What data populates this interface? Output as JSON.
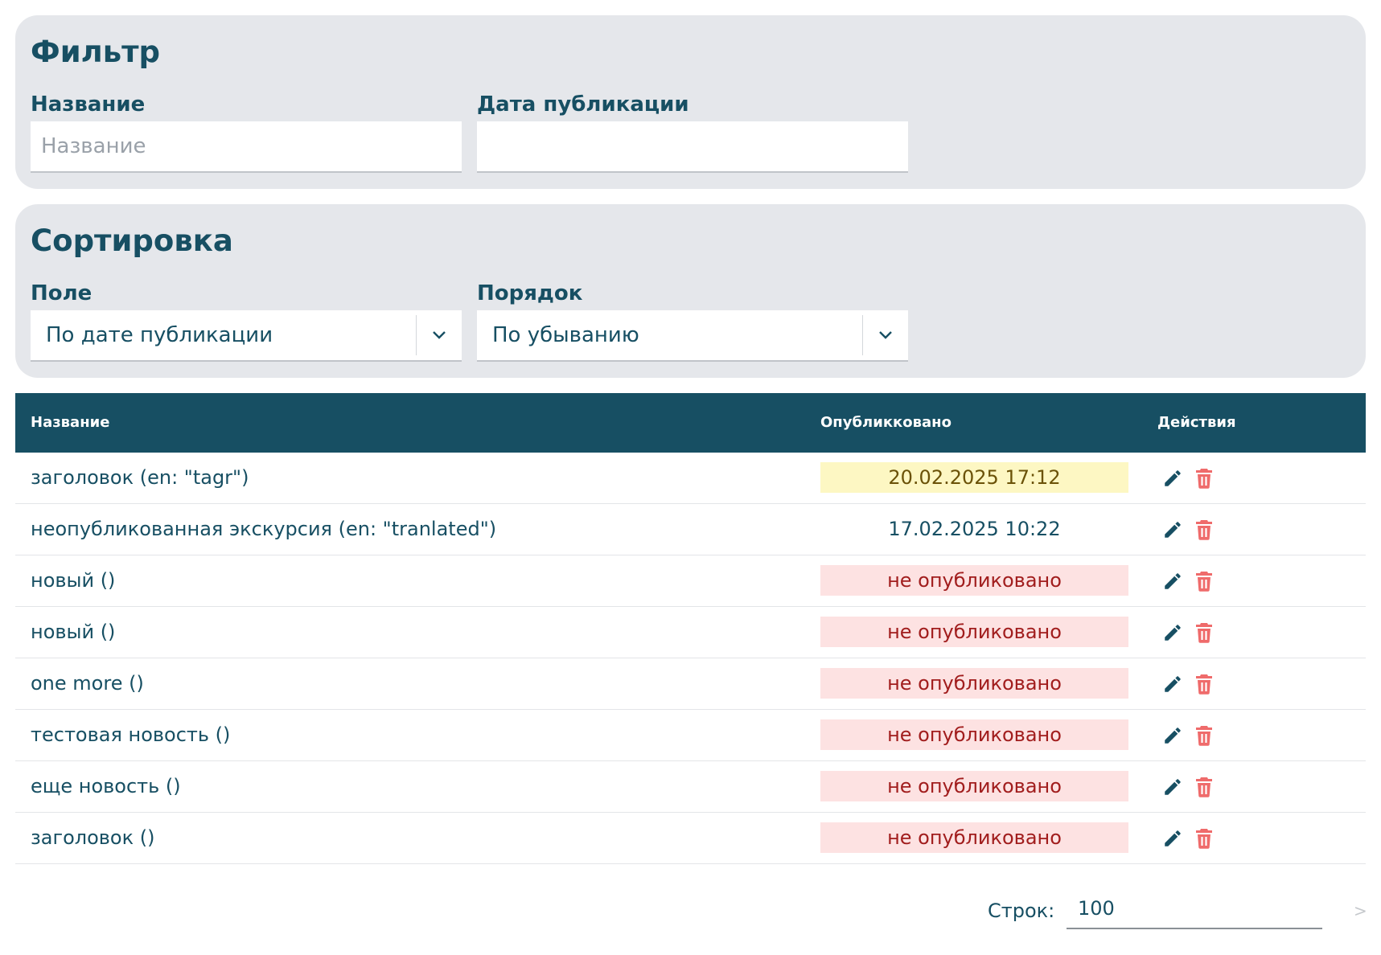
{
  "filter": {
    "title": "Фильтр",
    "name_label": "Название",
    "name_placeholder": "Название",
    "name_value": "",
    "date_label": "Дата публикации",
    "date_value": ""
  },
  "sort": {
    "title": "Сортировка",
    "field_label": "Поле",
    "field_value": "По дате публикации",
    "order_label": "Порядок",
    "order_value": "По убыванию"
  },
  "table": {
    "headers": {
      "name": "Название",
      "published": "Опубликковано",
      "actions": "Действия"
    },
    "rows": [
      {
        "name": "заголовок (en: \"tagr\")",
        "published": "20.02.2025 17:12",
        "status": "highlight"
      },
      {
        "name": "неопубликованная экскурсия (en: \"tranlated\")",
        "published": "17.02.2025 10:22",
        "status": "plain"
      },
      {
        "name": "новый ()",
        "published": "не опубликовано",
        "status": "unpublished"
      },
      {
        "name": "новый ()",
        "published": "не опубликовано",
        "status": "unpublished"
      },
      {
        "name": "one more ()",
        "published": "не опубликовано",
        "status": "unpublished"
      },
      {
        "name": "тестовая новость ()",
        "published": "не опубликовано",
        "status": "unpublished"
      },
      {
        "name": "еще новость ()",
        "published": "не опубликовано",
        "status": "unpublished"
      },
      {
        "name": "заголовок ()",
        "published": "не опубликовано",
        "status": "unpublished"
      }
    ],
    "action_icons": [
      "pencil-icon",
      "trash-icon"
    ]
  },
  "pagination": {
    "rows_label": "Строк:",
    "rows_value": "100",
    "next_symbol": ">"
  },
  "colors": {
    "primary": "#174f63",
    "panel_bg": "#e5e7eb",
    "highlight_bg": "#fdf7c3",
    "unpublished_bg": "#fde2e2",
    "unpublished_text": "#a11d1d",
    "delete_icon": "#ef6b6b"
  }
}
